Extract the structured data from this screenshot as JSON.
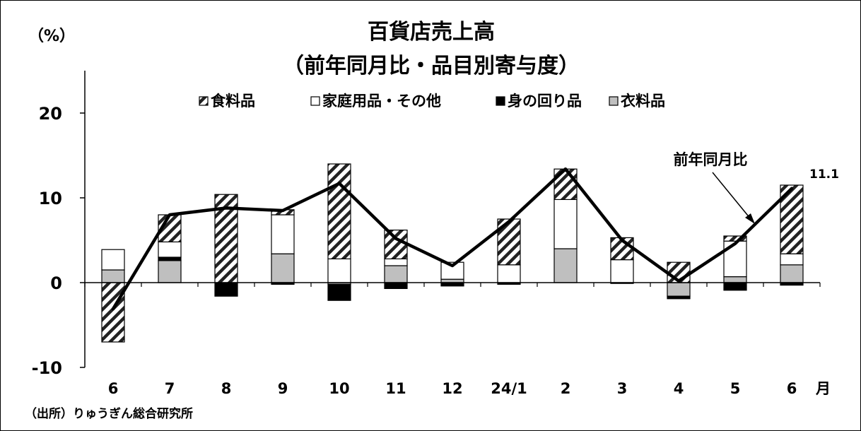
{
  "chart_data": {
    "type": "bar",
    "stacked": true,
    "title": "百貨店売上高",
    "subtitle": "（前年同月比・品目別寄与度）",
    "unit_label": "（%）",
    "x_suffix": "月",
    "categories": [
      "6",
      "7",
      "8",
      "9",
      "10",
      "11",
      "12",
      "24/1",
      "2",
      "3",
      "4",
      "5",
      "6"
    ],
    "ylim": [
      -10,
      20
    ],
    "yticks": [
      -10,
      0,
      10,
      20
    ],
    "legend_position": "top-center",
    "series": [
      {
        "name": "衣料品",
        "color": "#bfbfbf",
        "pattern": "solid",
        "values": [
          1.5,
          2.6,
          0.0,
          3.4,
          -0.2,
          2.0,
          0.4,
          0.0,
          4.0,
          0.0,
          -1.6,
          0.7,
          2.1
        ]
      },
      {
        "name": "身の回り品",
        "color": "#000000",
        "pattern": "solid",
        "values": [
          0.0,
          0.4,
          -1.6,
          -0.2,
          -1.9,
          -0.7,
          -0.4,
          -0.2,
          0.0,
          -0.1,
          -0.3,
          -0.9,
          -0.3
        ]
      },
      {
        "name": "家庭用品・その他",
        "color": "#ffffff",
        "pattern": "solid",
        "values": [
          2.4,
          1.8,
          0.0,
          4.6,
          2.8,
          0.8,
          2.0,
          2.1,
          5.8,
          2.7,
          0.0,
          4.2,
          1.3
        ]
      },
      {
        "name": "食料品",
        "color": "#ffffff",
        "pattern": "hatch",
        "values": [
          -7.0,
          3.2,
          10.4,
          0.6,
          11.2,
          3.4,
          0.0,
          5.4,
          3.6,
          2.6,
          2.4,
          0.6,
          8.1
        ]
      }
    ],
    "legend_order": [
      "食料品",
      "家庭用品・その他",
      "身の回り品",
      "衣料品"
    ],
    "line": {
      "name": "前年同月比",
      "color": "#000000",
      "values": [
        -3.1,
        8.0,
        8.8,
        8.5,
        11.7,
        5.2,
        2.0,
        7.2,
        13.4,
        5.0,
        0.2,
        4.6,
        11.1
      ]
    },
    "last_value_label": "11.1",
    "line_annotation": "前年同月比"
  },
  "source": "（出所）りゅうぎん総合研究所"
}
